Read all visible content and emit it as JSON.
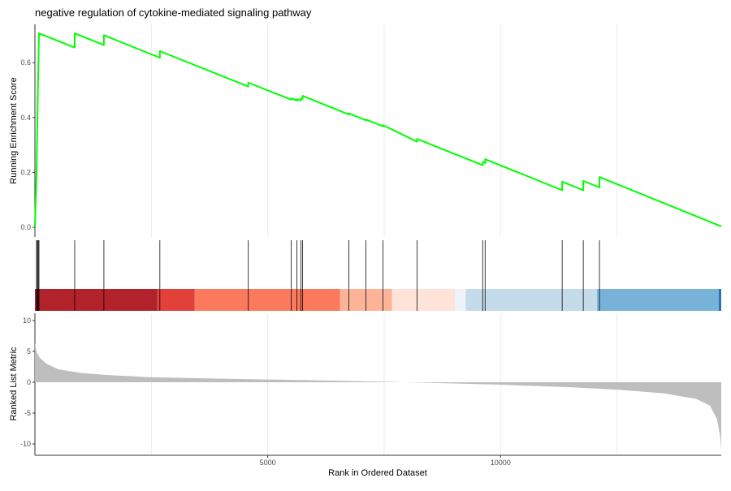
{
  "chart_data": {
    "type": "line",
    "title": "negative regulation of cytokine-mediated signaling pathway",
    "xlabel": "Rank in Ordered Dataset",
    "ylabel_top": "Running Enrichment Score",
    "ylabel_bottom": "Ranked List Metric",
    "n_genes": 14740,
    "xlim": [
      0,
      14740
    ],
    "x_ticks": [
      {
        "value": 5000,
        "label": "5000"
      },
      {
        "value": 10000,
        "label": "10000"
      }
    ],
    "x_grid": [
      2500,
      5000,
      7500,
      10000,
      12500
    ],
    "es_ylim": [
      -0.02,
      0.74
    ],
    "es_ticks": [
      {
        "value": 0,
        "label": "0.0"
      },
      {
        "value": 0.2,
        "label": "0.2"
      },
      {
        "value": 0.4,
        "label": "0.4"
      },
      {
        "value": 0.6,
        "label": "0.6"
      }
    ],
    "es_color": "#00FF00",
    "es_points": [
      [
        0,
        0
      ],
      [
        35,
        0.2
      ],
      [
        52,
        0.38
      ],
      [
        70,
        0.55
      ],
      [
        87,
        0.707
      ],
      [
        854,
        0.655
      ],
      [
        854,
        0.707
      ],
      [
        1481,
        0.664
      ],
      [
        1481,
        0.7
      ],
      [
        2683,
        0.618
      ],
      [
        2683,
        0.642
      ],
      [
        4582,
        0.513
      ],
      [
        4582,
        0.527
      ],
      [
        5505,
        0.465
      ],
      [
        5505,
        0.47
      ],
      [
        5627,
        0.462
      ],
      [
        5627,
        0.467
      ],
      [
        5714,
        0.462
      ],
      [
        5714,
        0.47
      ],
      [
        5749,
        0.468
      ],
      [
        5749,
        0.479
      ],
      [
        6742,
        0.411
      ],
      [
        6742,
        0.415
      ],
      [
        7108,
        0.39
      ],
      [
        7108,
        0.393
      ],
      [
        7474,
        0.368
      ],
      [
        7474,
        0.372
      ],
      [
        8206,
        0.312
      ],
      [
        8206,
        0.322
      ],
      [
        9617,
        0.226
      ],
      [
        9617,
        0.238
      ],
      [
        9669,
        0.234
      ],
      [
        9669,
        0.248
      ],
      [
        11324,
        0.135
      ],
      [
        11324,
        0.166
      ],
      [
        11777,
        0.135
      ],
      [
        11777,
        0.169
      ],
      [
        12125,
        0.145
      ],
      [
        12125,
        0.183
      ],
      [
        14740,
        0.003
      ]
    ],
    "hits": [
      35,
      52,
      70,
      87,
      854,
      1481,
      2683,
      4582,
      5505,
      5627,
      5714,
      5749,
      6742,
      7108,
      7474,
      8206,
      9617,
      9669,
      11324,
      11777,
      12125
    ],
    "color_bands": [
      {
        "from": 0,
        "to": 2631,
        "color": "#B2222B"
      },
      {
        "from": 2631,
        "to": 3432,
        "color": "#E2413A"
      },
      {
        "from": 3432,
        "to": 6551,
        "color": "#FB795C"
      },
      {
        "from": 6551,
        "to": 7666,
        "color": "#FCB398"
      },
      {
        "from": 7666,
        "to": 9024,
        "color": "#FEE4D8"
      },
      {
        "from": 9024,
        "to": 9251,
        "color": "#EEF3FB"
      },
      {
        "from": 9251,
        "to": 12073,
        "color": "#C4DBEA"
      },
      {
        "from": 12073,
        "to": 14686,
        "color": "#77B3D9"
      },
      {
        "from": 14686,
        "to": 14740,
        "color": "#2B74B3"
      }
    ],
    "metric_ylim": [
      -11.7,
      11
    ],
    "metric_ticks": [
      {
        "value": 10,
        "label": "10"
      },
      {
        "value": 5,
        "label": "5"
      },
      {
        "value": 0,
        "label": "0"
      },
      {
        "value": -5,
        "label": "-5"
      },
      {
        "value": -10,
        "label": "-10"
      }
    ],
    "metric_color": "#BEBEBE",
    "metric_points": [
      [
        0,
        6.5
      ],
      [
        30,
        5
      ],
      [
        100,
        4
      ],
      [
        250,
        3
      ],
      [
        500,
        2.1
      ],
      [
        1000,
        1.5
      ],
      [
        1500,
        1.2
      ],
      [
        2500,
        0.8
      ],
      [
        3500,
        0.65
      ],
      [
        5000,
        0.45
      ],
      [
        6500,
        0.25
      ],
      [
        7700,
        0.05
      ],
      [
        8500,
        -0.1
      ],
      [
        10000,
        -0.4
      ],
      [
        11500,
        -0.8
      ],
      [
        12500,
        -1.2
      ],
      [
        13500,
        -1.8
      ],
      [
        14200,
        -2.7
      ],
      [
        14500,
        -3.8
      ],
      [
        14650,
        -6
      ],
      [
        14720,
        -9
      ],
      [
        14740,
        -11
      ]
    ]
  }
}
